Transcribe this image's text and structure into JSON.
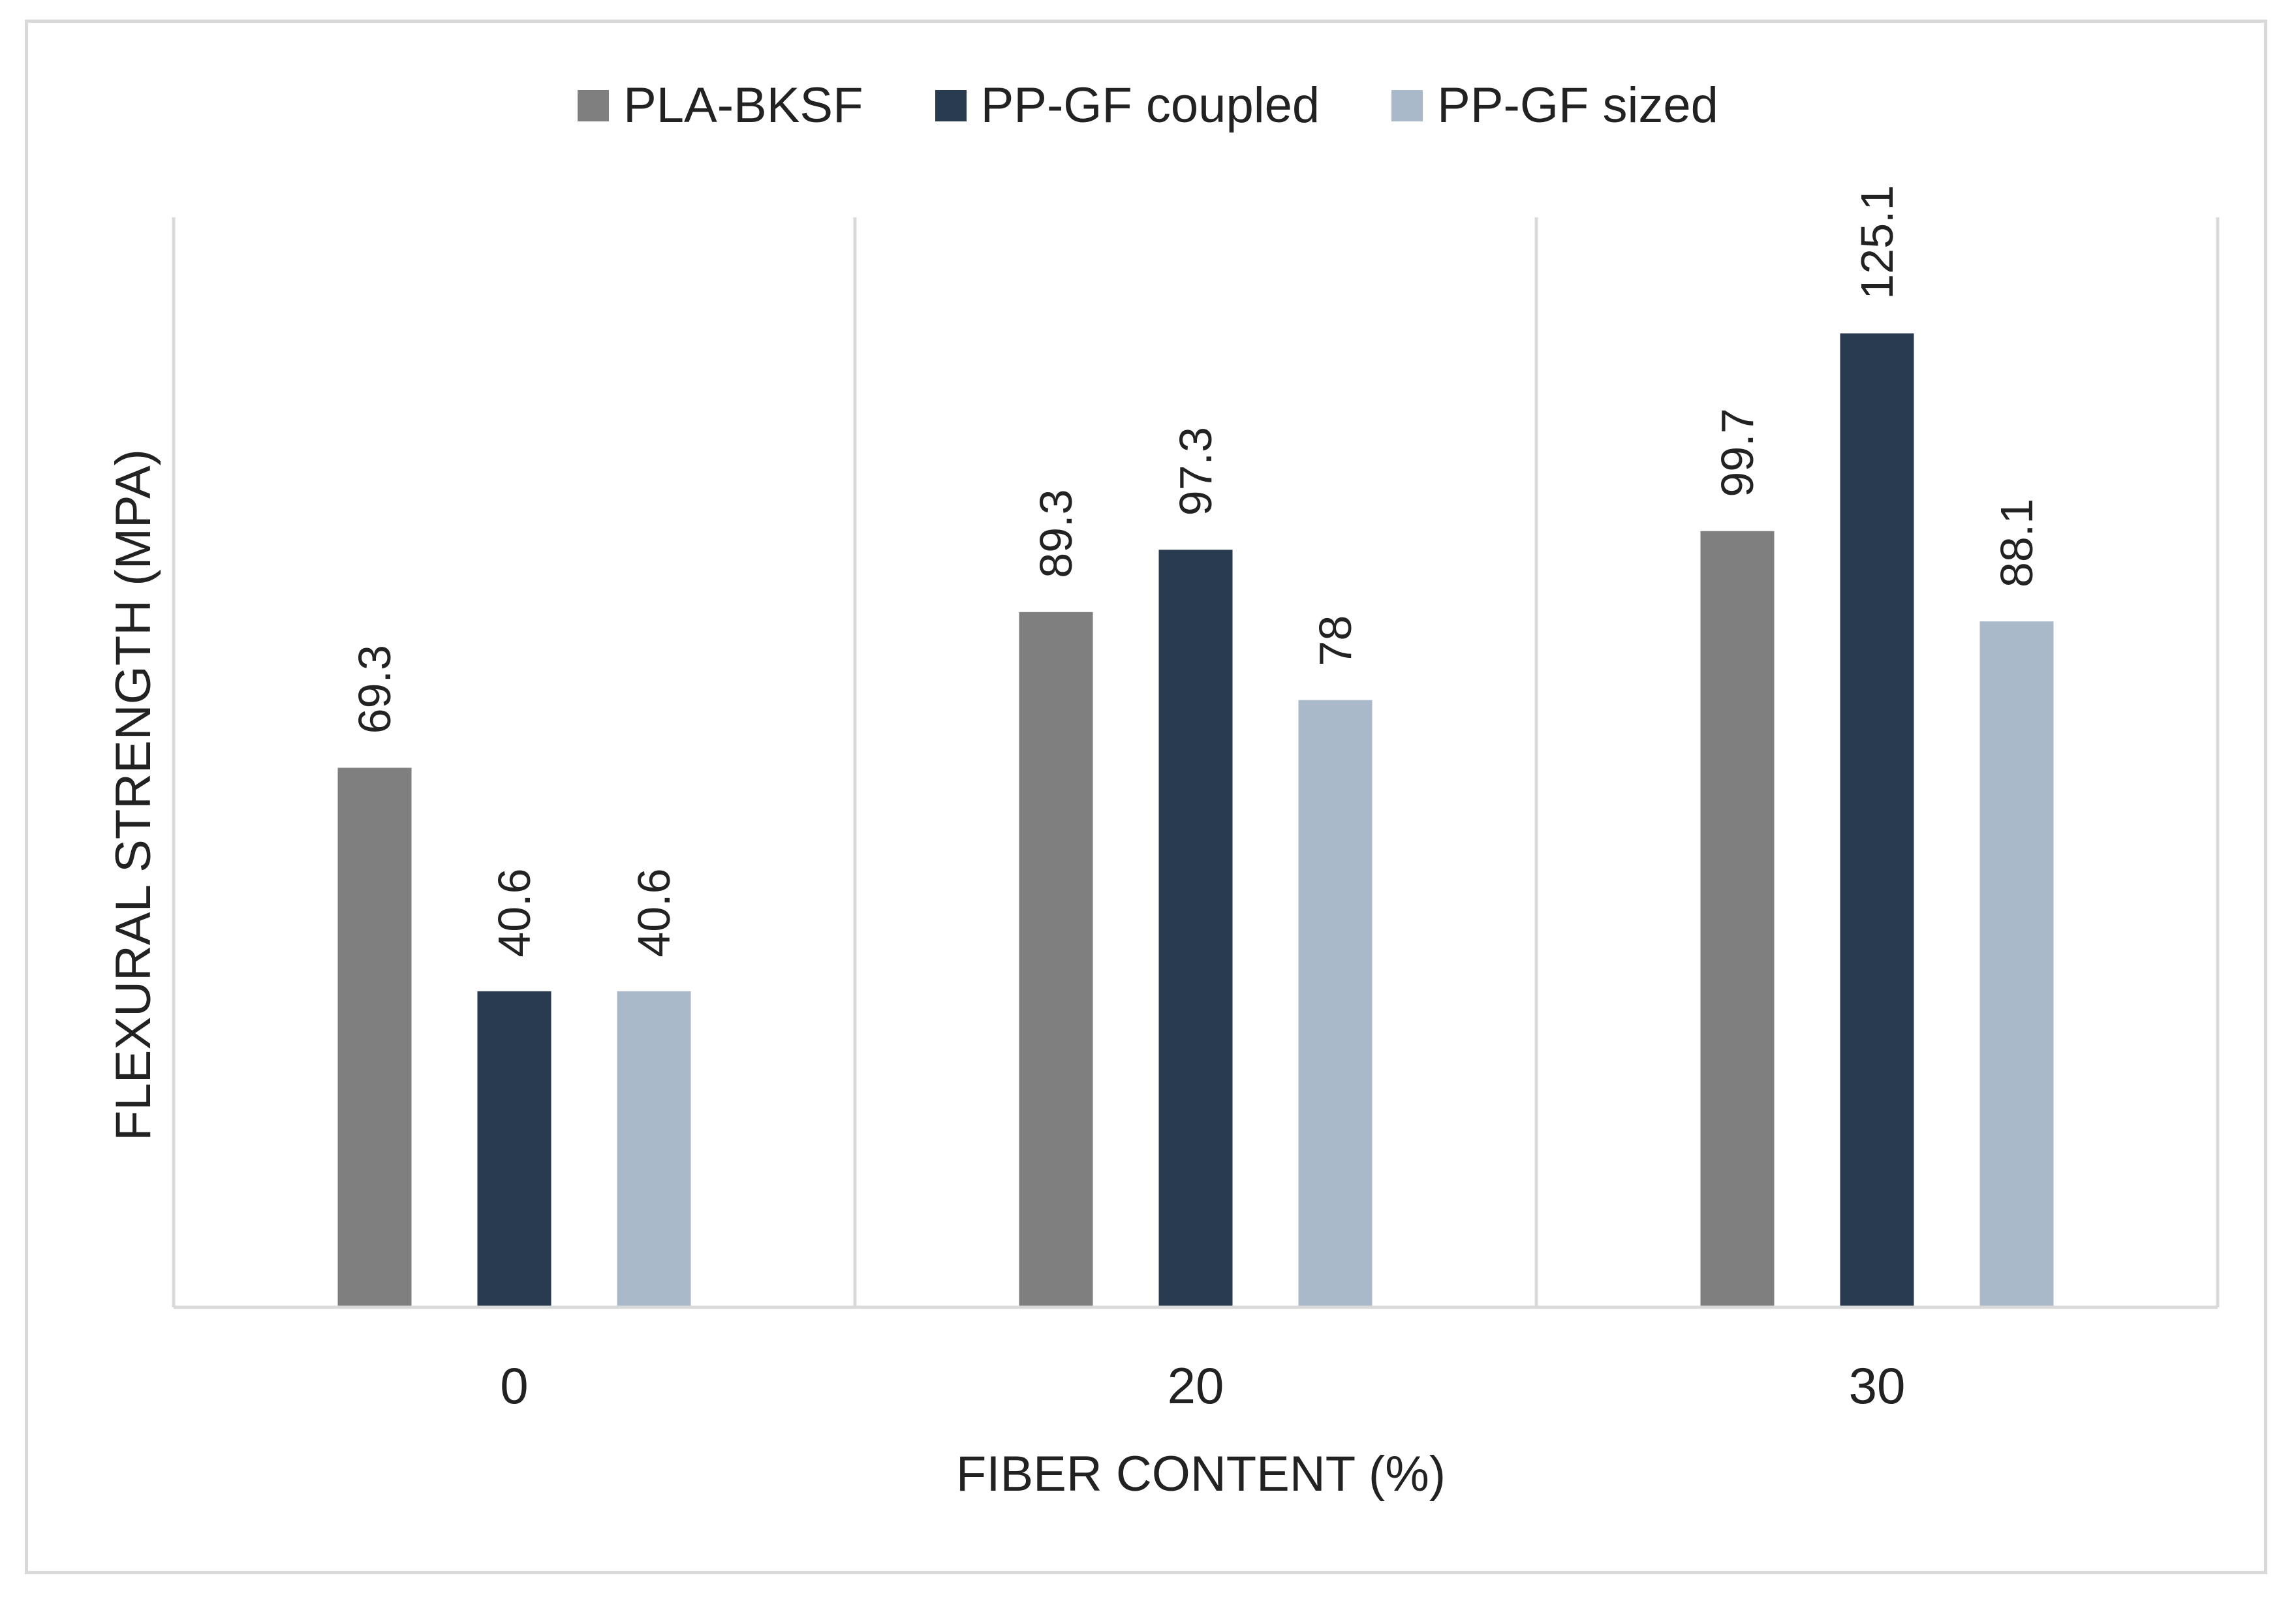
{
  "chart_data": {
    "type": "bar",
    "categories": [
      "0",
      "20",
      "30"
    ],
    "series": [
      {
        "name": "PLA-BKSF",
        "values": [
          69.3,
          89.3,
          99.7
        ],
        "color": "#7f7f7f"
      },
      {
        "name": "PP-GF coupled",
        "values": [
          40.6,
          97.3,
          125.1
        ],
        "color": "#283b4f"
      },
      {
        "name": "PP-GF sized",
        "values": [
          40.6,
          78,
          88.1
        ],
        "color": "#a9b9ca"
      }
    ],
    "data_labels": [
      [
        "69.3",
        "89.3",
        "99.7"
      ],
      [
        "40.6",
        "97.3",
        "125.1"
      ],
      [
        "40.6",
        "78",
        "88.1"
      ]
    ],
    "title": "",
    "xlabel": "FIBER CONTENT (%)",
    "ylabel": "FLEXURAL STRENGTH (MPA)",
    "ylim": [
      0,
      140
    ],
    "legend_position": "top-center",
    "grid": "vertical-category-separators",
    "axis_color": "#d9d9d9"
  }
}
